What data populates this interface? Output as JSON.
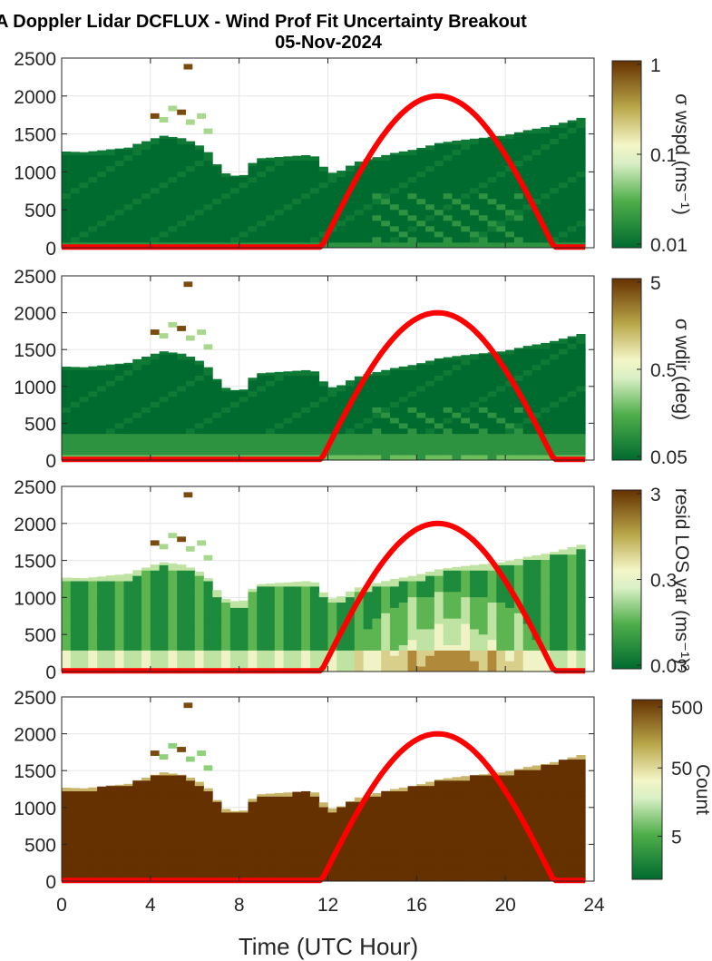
{
  "title": {
    "line1": "A Doppler Lidar DCFLUX - Wind Prof Fit Uncertainty Breakout",
    "line2": "05-Nov-2024"
  },
  "xaxis": {
    "label": "Time (UTC Hour)",
    "range": [
      0,
      24
    ],
    "ticks": [
      "0",
      "4",
      "8",
      "12",
      "16",
      "20",
      "24"
    ],
    "tick_values": [
      0,
      4,
      8,
      12,
      16,
      20,
      24
    ]
  },
  "yaxis": {
    "range": [
      0,
      2500
    ],
    "ticks": [
      "0",
      "500",
      "1000",
      "1500",
      "2000",
      "2500"
    ],
    "tick_values": [
      0,
      500,
      1000,
      1500,
      2000,
      2500
    ]
  },
  "colors": {
    "low": "#006b2f",
    "mid": "#f4f6c8",
    "high": "#653100",
    "overlay": "#ff0000"
  },
  "chart_data": {
    "type": "heatmap",
    "panels": [
      {
        "id": "wspd",
        "colorbar_label": "σ wspd (ms⁻¹)",
        "colorbar_ticks": [
          "1",
          "0.1",
          "0.01"
        ],
        "colorbar_range": [
          0.01,
          1
        ],
        "colorbar_scale": "log"
      },
      {
        "id": "wdir",
        "colorbar_label": "σ wdir (deg)",
        "colorbar_ticks": [
          "5",
          "0.5",
          "0.05"
        ],
        "colorbar_range": [
          0.05,
          5
        ],
        "colorbar_scale": "log"
      },
      {
        "id": "resid",
        "colorbar_label": "resid LOS var (ms⁻¹)²",
        "colorbar_ticks": [
          "3",
          "0.3",
          "0.03"
        ],
        "colorbar_range": [
          0.03,
          3
        ],
        "colorbar_scale": "log"
      },
      {
        "id": "count",
        "colorbar_label": "Count",
        "colorbar_ticks": [
          "500",
          "50",
          "5"
        ],
        "colorbar_range": [
          1,
          500
        ],
        "colorbar_scale": "log"
      }
    ],
    "data_top_height": {
      "x": [
        0,
        1,
        2,
        3,
        3.5,
        4,
        4.5,
        5,
        5.5,
        6,
        6.5,
        7,
        7.5,
        7.8,
        8.3,
        8.7,
        9,
        10,
        11,
        11.5,
        12,
        12.5,
        13,
        13.5,
        14,
        15,
        16,
        17,
        18,
        19,
        20,
        21,
        22,
        23,
        23.5
      ],
      "y": [
        1270,
        1260,
        1290,
        1320,
        1380,
        1420,
        1480,
        1460,
        1440,
        1380,
        1300,
        1100,
        950,
        950,
        960,
        1170,
        1180,
        1200,
        1220,
        1200,
        980,
        1000,
        1080,
        1150,
        1180,
        1250,
        1300,
        1380,
        1420,
        1450,
        1480,
        1550,
        1600,
        1680,
        1720
      ]
    },
    "overlay_curve": {
      "color": "#ff0000",
      "x": [
        0,
        11.7,
        12.5,
        13.5,
        14.5,
        15.5,
        16.5,
        17,
        17.5,
        18.5,
        19.5,
        20.5,
        21.5,
        22.2,
        23.5
      ],
      "y": [
        0,
        0,
        400,
        1100,
        1600,
        1900,
        1990,
        2000,
        1990,
        1900,
        1600,
        1100,
        400,
        0,
        0
      ]
    }
  }
}
